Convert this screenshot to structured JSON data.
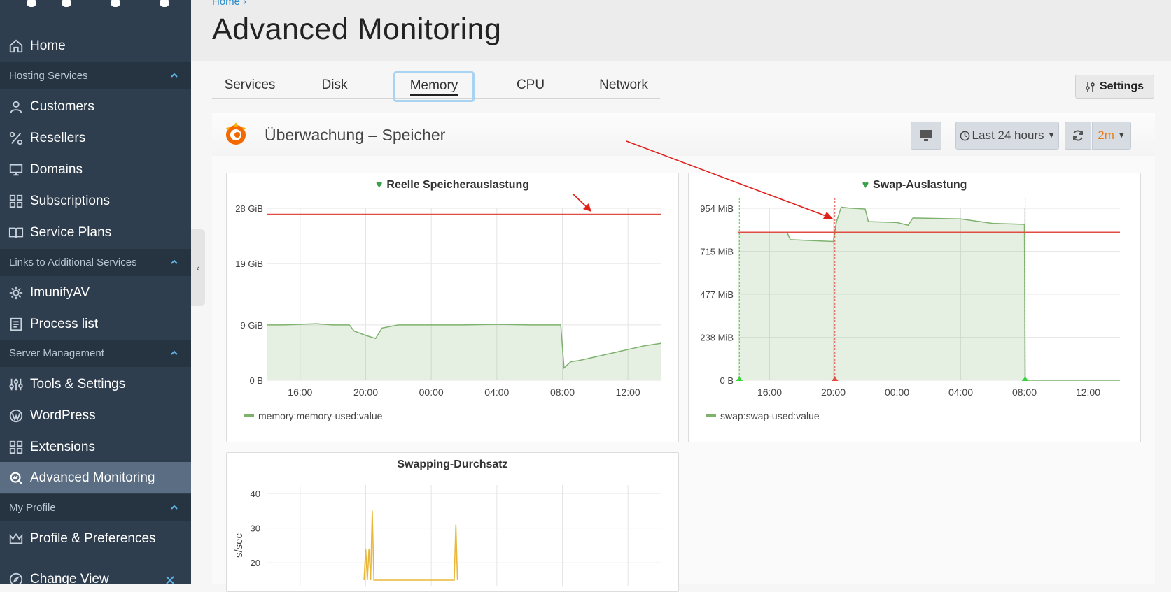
{
  "breadcrumb": "Home ›",
  "page_title": "Advanced Monitoring",
  "sidebar": {
    "items": [
      {
        "label": "Home",
        "icon": "home-icon"
      },
      {
        "label": "Customers",
        "icon": "user-icon"
      },
      {
        "label": "Resellers",
        "icon": "percent-icon"
      },
      {
        "label": "Domains",
        "icon": "monitor-icon"
      },
      {
        "label": "Subscriptions",
        "icon": "grid-icon"
      },
      {
        "label": "Service Plans",
        "icon": "book-icon"
      },
      {
        "label": "ImunifyAV",
        "icon": "gear-icon"
      },
      {
        "label": "Process list",
        "icon": "checklist-icon"
      },
      {
        "label": "Tools & Settings",
        "icon": "sliders-icon"
      },
      {
        "label": "WordPress",
        "icon": "wordpress-icon"
      },
      {
        "label": "Extensions",
        "icon": "extensions-icon"
      },
      {
        "label": "Advanced Monitoring",
        "icon": "monitoring-icon"
      },
      {
        "label": "Profile & Preferences",
        "icon": "crown-icon"
      },
      {
        "label": "Change View",
        "icon": "compass-icon"
      }
    ],
    "sections": [
      "Hosting Services",
      "Links to Additional Services",
      "Server Management",
      "My Profile"
    ]
  },
  "tabs": [
    "Services",
    "Disk",
    "Memory",
    "CPU",
    "Network"
  ],
  "active_tab": "Memory",
  "settings_label": "Settings",
  "dashboard": {
    "title": "Überwachung – Speicher",
    "time_range": "Last 24 hours",
    "refresh": "2m"
  },
  "colors": {
    "sidebar": "#2f3e4e",
    "series_green": "#7eb26d",
    "threshold_red": "#e24d42",
    "swap_rate": "#eab839",
    "refresh_orange": "#eb7b18"
  },
  "chart_data": [
    {
      "type": "area",
      "title": "Reelle Speicherauslastung",
      "x_ticks": [
        "16:00",
        "20:00",
        "00:00",
        "04:00",
        "08:00",
        "12:00"
      ],
      "y_ticks": [
        "0 B",
        "9 GiB",
        "19 GiB",
        "28 GiB"
      ],
      "ylim": [
        0,
        28
      ],
      "threshold": 27,
      "series": [
        {
          "name": "memory:memory-used:value",
          "x": [
            14.0,
            15.0,
            16.0,
            17.0,
            18.0,
            19.0,
            19.3,
            20.0,
            20.6,
            21.0,
            22.0,
            24.0,
            26.0,
            28.0,
            30.0,
            31.9,
            32.1,
            32.5,
            33.0,
            34.0,
            35.0,
            36.0,
            37.0,
            38.0
          ],
          "y": [
            9.0,
            9.0,
            9.1,
            9.2,
            9.0,
            9.0,
            8.0,
            7.3,
            6.8,
            8.5,
            9.0,
            9.0,
            9.0,
            9.1,
            9.0,
            9.0,
            2.0,
            3.0,
            3.2,
            3.8,
            4.4,
            5.0,
            5.6,
            6.0
          ]
        }
      ]
    },
    {
      "type": "area",
      "title": "Swap-Auslastung",
      "x_ticks": [
        "16:00",
        "20:00",
        "00:00",
        "04:00",
        "08:00",
        "12:00"
      ],
      "y_ticks": [
        "0 B",
        "238 MiB",
        "477 MiB",
        "715 MiB",
        "954 MiB"
      ],
      "ylim": [
        0,
        954
      ],
      "threshold": 820,
      "series": [
        {
          "name": "swap:swap-used:value",
          "x": [
            14.0,
            17.1,
            17.3,
            20.0,
            20.2,
            20.5,
            21.0,
            22.0,
            22.2,
            24.0,
            24.7,
            25.0,
            28.0,
            30.0,
            32.0,
            32.05,
            38.0
          ],
          "y": [
            820,
            820,
            780,
            770,
            880,
            960,
            955,
            950,
            880,
            875,
            860,
            900,
            895,
            870,
            865,
            0,
            0
          ]
        }
      ]
    },
    {
      "type": "line",
      "title": "Swapping-Durchsatz",
      "ylabel": "s/sec",
      "y_ticks": [
        "20",
        "30",
        "40"
      ],
      "ylim": [
        15,
        40
      ],
      "series": [
        {
          "name": "",
          "x": [
            19.9,
            20.0,
            20.1,
            20.2,
            20.3,
            20.4,
            20.5,
            20.6,
            20.7,
            25.4,
            25.5,
            25.6
          ],
          "y": [
            15,
            24,
            15,
            24,
            15,
            35,
            15,
            15,
            15,
            15,
            31,
            15
          ]
        }
      ]
    }
  ]
}
